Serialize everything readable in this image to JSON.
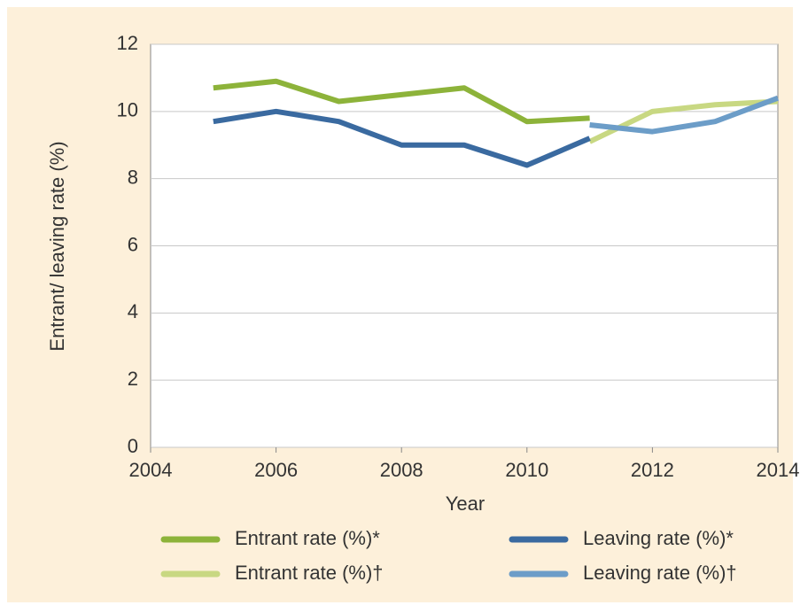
{
  "chart_data": {
    "type": "line",
    "x_label": "Year",
    "y_label": "Entrant/ leaving rate (%)",
    "x": [
      2005,
      2006,
      2007,
      2008,
      2009,
      2010,
      2011,
      2012,
      2013,
      2014
    ],
    "series": [
      {
        "name": "Entrant rate (%)*",
        "color": "#8db33a",
        "values": [
          10.7,
          10.9,
          10.3,
          10.5,
          10.7,
          9.7,
          9.8,
          null,
          null,
          null
        ]
      },
      {
        "name": "Entrant rate (%)†",
        "color": "#c8d882",
        "values": [
          null,
          null,
          null,
          null,
          null,
          null,
          9.1,
          10.0,
          10.2,
          10.3
        ]
      },
      {
        "name": "Leaving rate (%)*",
        "color": "#3a6aa0",
        "values": [
          9.7,
          10.0,
          9.7,
          9.0,
          9.0,
          8.4,
          9.2,
          null,
          null,
          null
        ]
      },
      {
        "name": "Leaving rate (%)†",
        "color": "#6c9dc8",
        "values": [
          null,
          null,
          null,
          null,
          null,
          null,
          9.6,
          9.4,
          9.7,
          10.4
        ]
      }
    ],
    "xlim": [
      2004,
      2014
    ],
    "xticks": [
      2004,
      2006,
      2008,
      2010,
      2012,
      2014
    ],
    "ylim": [
      0,
      12
    ],
    "yticks": [
      0,
      2,
      4,
      6,
      8,
      10,
      12
    ],
    "grid": true
  }
}
